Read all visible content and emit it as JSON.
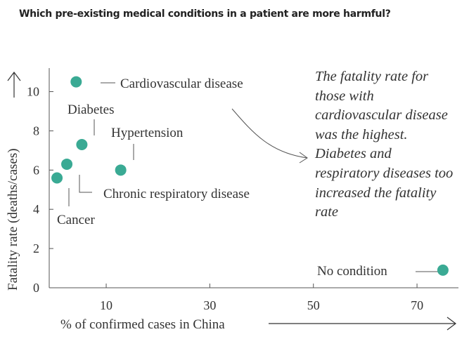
{
  "chart_data": {
    "type": "scatter",
    "title": "Which pre-existing medical conditions in a patient are more harmful?",
    "xlabel": "% of confirmed cases in China",
    "ylabel": "Fatality rate (deaths/cases)",
    "xlim": [
      -1,
      78
    ],
    "ylim": [
      0,
      11.2
    ],
    "x_ticks": [
      "10",
      "30",
      "50",
      "70"
    ],
    "y_ticks": [
      "0",
      "2",
      "4",
      "6",
      "8",
      "10"
    ],
    "grid": false,
    "point_color": "#3aaa94",
    "points": [
      {
        "label": "Cardiovascular disease",
        "x": 4.2,
        "y": 10.5
      },
      {
        "label": "Diabetes",
        "x": 5.3,
        "y": 7.3
      },
      {
        "label": "Hypertension",
        "x": 12.8,
        "y": 6.0
      },
      {
        "label": "Chronic respiratory disease",
        "x": 2.4,
        "y": 6.3
      },
      {
        "label": "Cancer",
        "x": 0.5,
        "y": 5.6
      },
      {
        "label": "No condition",
        "x": 75,
        "y": 0.9
      }
    ],
    "annotations": [
      {
        "text": "The fatality rate for those with cardiovascular disease was the highest. Diabetes and respiratory diseases too increased the fatality rate"
      }
    ]
  }
}
